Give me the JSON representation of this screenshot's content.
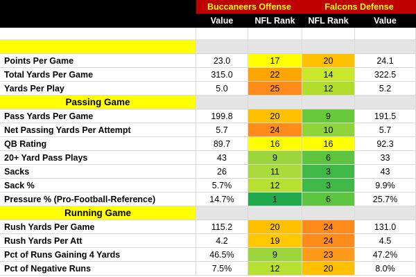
{
  "header": {
    "team1_title": "Buccaneers Offense",
    "team2_title": "Falcons Defense",
    "col1": "Value",
    "col2": "NFL Rank",
    "col3": "NFL Rank",
    "col4": "Value"
  },
  "colors": {
    "header_bg": "#000000",
    "title_bg": "#c00000",
    "title_text": "#ffff00",
    "section_bg": "#ffff00",
    "section_fill": "#e4e4e4"
  },
  "sections": [
    {
      "title": "",
      "rows": [
        {
          "label": "Points Per Game",
          "v1": "23.0",
          "r1": "17",
          "r2": "20",
          "v2": "24.1",
          "c1": "#ffff00",
          "c2": "#ffc000"
        },
        {
          "label": "Total Yards Per Game",
          "v1": "315.0",
          "r1": "22",
          "r2": "14",
          "v2": "322.5",
          "c1": "#ffa500",
          "c2": "#c9e82b"
        },
        {
          "label": "Yards Per Play",
          "v1": "5.0",
          "r1": "25",
          "r2": "12",
          "v2": "5.2",
          "c1": "#ff8c1a",
          "c2": "#b0de2a"
        }
      ]
    },
    {
      "title": "Passing Game",
      "rows": [
        {
          "label": "Pass Yards Per Game",
          "v1": "199.8",
          "r1": "20",
          "r2": "9",
          "v2": "191.5",
          "c1": "#ffc000",
          "c2": "#66c93a"
        },
        {
          "label": "Net Passing Yards Per Attempt",
          "v1": "5.7",
          "r1": "24",
          "r2": "10",
          "v2": "5.7",
          "c1": "#ff8c1a",
          "c2": "#8fd43b"
        },
        {
          "label": "QB Rating",
          "v1": "89.7",
          "r1": "16",
          "r2": "16",
          "v2": "92.3",
          "c1": "#ffff00",
          "c2": "#ffff00"
        },
        {
          "label": "20+ Yard Pass Plays",
          "v1": "43",
          "r1": "9",
          "r2": "6",
          "v2": "33",
          "c1": "#9bd53b",
          "c2": "#5cc43f"
        },
        {
          "label": "Sacks",
          "v1": "26",
          "r1": "11",
          "r2": "3",
          "v2": "43",
          "c1": "#a8dc3a",
          "c2": "#3fb848"
        },
        {
          "label": "Sack %",
          "v1": "5.7%",
          "r1": "12",
          "r2": "3",
          "v2": "9.9%",
          "c1": "#b8e033",
          "c2": "#3fb848"
        },
        {
          "label": "Pressure % (Pro-Football-Reference)",
          "v1": "14.7%",
          "r1": "1",
          "r2": "6",
          "v2": "25.7%",
          "c1": "#1fab4d",
          "c2": "#5cc43f"
        }
      ]
    },
    {
      "title": "Running Game",
      "rows": [
        {
          "label": "Rush Yards Per Game",
          "v1": "115.2",
          "r1": "20",
          "r2": "24",
          "v2": "131.0",
          "c1": "#ffc000",
          "c2": "#ff8c1a"
        },
        {
          "label": "Rush Yards Per Att",
          "v1": "4.2",
          "r1": "19",
          "r2": "24",
          "v2": "4.5",
          "c1": "#ffc800",
          "c2": "#ff8c1a"
        },
        {
          "label": "Pct of Runs Gaining 4 Yards",
          "v1": "46.5%",
          "r1": "9",
          "r2": "23",
          "v2": "47.2%",
          "c1": "#9bd53b",
          "c2": "#ff9a1a"
        },
        {
          "label": "Pct of Negative Runs",
          "v1": "7.5%",
          "r1": "12",
          "r2": "20",
          "v2": "8.0%",
          "c1": "#b8e033",
          "c2": "#ffc000"
        }
      ]
    }
  ]
}
